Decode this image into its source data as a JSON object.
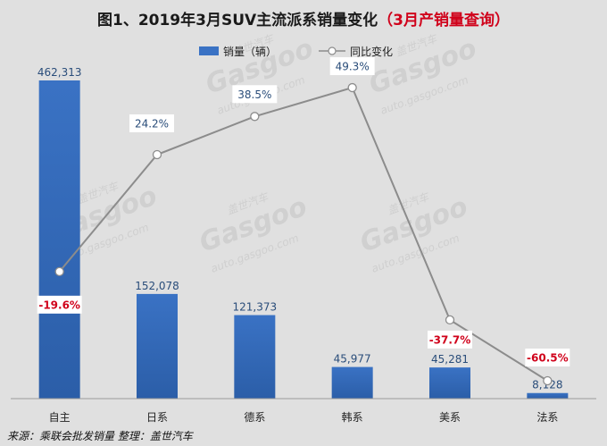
{
  "chart_data": {
    "type": "bar",
    "title": "图1、2019年3月SUV主流派系销量变化",
    "subtitle": "（3月产销量查询）",
    "categories": [
      "自主",
      "日系",
      "德系",
      "韩系",
      "美系",
      "法系"
    ],
    "series": [
      {
        "name": "销量（辆）",
        "type": "bar",
        "values": [
          462313,
          152078,
          121373,
          45977,
          45281,
          8128
        ],
        "labels": [
          "462,313",
          "152,078",
          "121,373",
          "45,977",
          "45,281",
          "8,128"
        ],
        "color": "#3a72c4"
      },
      {
        "name": "同比变化",
        "type": "line",
        "values": [
          -19.6,
          24.2,
          38.5,
          49.3,
          -37.7,
          -60.5
        ],
        "labels": [
          "-19.6%",
          "24.2%",
          "38.5%",
          "49.3%",
          "-37.7%",
          "-60.5%"
        ],
        "color": "#8c8c8c",
        "positive_color": "#2a4d7a",
        "negative_color": "#d0021b"
      }
    ],
    "legend_position": "top-center",
    "grid": false
  },
  "source_note": "来源：乘联会批发销量  整理：盖世汽车",
  "watermark": {
    "brand": "Gasgoo",
    "cn": "盖世汽车",
    "url": "auto.gasgoo.com"
  }
}
